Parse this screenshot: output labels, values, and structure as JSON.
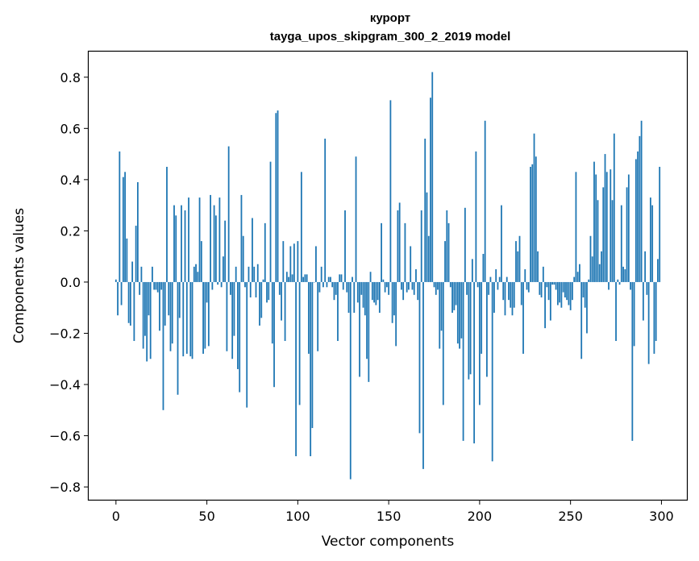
{
  "chart_data": {
    "type": "bar",
    "title_lines": [
      "курорт",
      "tayga_upos_skipgram_300_2_2019 model"
    ],
    "xlabel": "Vector components",
    "ylabel": "Components values",
    "xlim": [
      -15,
      314
    ],
    "ylim": [
      -0.85,
      0.9
    ],
    "xticks": [
      0,
      50,
      100,
      150,
      200,
      250,
      300
    ],
    "yticks": [
      -0.8,
      -0.6,
      -0.4,
      -0.2,
      0.0,
      0.2,
      0.4,
      0.6,
      0.8
    ],
    "ytick_labels": [
      "−0.8",
      "−0.6",
      "−0.4",
      "−0.2",
      "0.0",
      "0.2",
      "0.4",
      "0.6",
      "0.8"
    ],
    "grid": false,
    "bar_color": "#1f77b4",
    "values": [
      0.01,
      -0.13,
      0.51,
      -0.09,
      0.41,
      0.43,
      0.17,
      -0.16,
      -0.17,
      0.08,
      -0.23,
      0.22,
      0.39,
      -0.05,
      0.06,
      -0.26,
      -0.21,
      -0.31,
      -0.13,
      -0.3,
      0.06,
      -0.03,
      -0.03,
      -0.04,
      -0.19,
      -0.03,
      -0.5,
      -0.17,
      0.45,
      -0.13,
      -0.27,
      -0.24,
      0.3,
      0.26,
      -0.44,
      -0.14,
      0.3,
      -0.29,
      0.28,
      -0.28,
      0.33,
      -0.29,
      -0.3,
      0.06,
      0.07,
      0.04,
      0.33,
      0.16,
      -0.28,
      -0.26,
      -0.08,
      -0.25,
      0.34,
      -0.03,
      0.3,
      0.26,
      -0.01,
      0.33,
      -0.02,
      0.1,
      0.24,
      -0.27,
      0.53,
      -0.05,
      -0.3,
      -0.21,
      0.06,
      -0.34,
      -0.43,
      0.34,
      0.18,
      -0.02,
      -0.49,
      0.06,
      -0.06,
      0.25,
      0.06,
      -0.06,
      0.07,
      -0.17,
      -0.14,
      0.01,
      0.23,
      -0.08,
      -0.07,
      0.47,
      -0.24,
      -0.41,
      0.66,
      0.67,
      -0.05,
      -0.15,
      0.16,
      -0.23,
      0.04,
      0.02,
      0.14,
      0.03,
      0.15,
      -0.68,
      0.16,
      -0.48,
      0.43,
      0.02,
      0.03,
      0.03,
      -0.28,
      -0.68,
      -0.57,
      0.0,
      0.14,
      -0.27,
      -0.04,
      0.06,
      -0.02,
      0.56,
      -0.02,
      0.02,
      0.02,
      -0.02,
      -0.07,
      -0.05,
      -0.23,
      0.03,
      0.03,
      -0.03,
      0.28,
      -0.04,
      -0.12,
      -0.77,
      0.02,
      -0.12,
      0.49,
      -0.08,
      -0.37,
      -0.05,
      -0.1,
      -0.13,
      -0.3,
      -0.39,
      0.04,
      -0.07,
      -0.08,
      -0.09,
      -0.07,
      -0.12,
      0.23,
      0.01,
      -0.04,
      -0.02,
      -0.05,
      0.71,
      -0.16,
      -0.13,
      -0.25,
      0.28,
      0.31,
      -0.03,
      -0.07,
      0.23,
      -0.04,
      -0.03,
      0.14,
      -0.03,
      -0.05,
      0.05,
      -0.07,
      -0.59,
      0.28,
      -0.73,
      0.56,
      0.35,
      0.18,
      0.72,
      0.82,
      -0.02,
      -0.05,
      -0.03,
      -0.26,
      -0.19,
      -0.48,
      0.16,
      0.28,
      0.23,
      -0.02,
      -0.12,
      -0.11,
      -0.09,
      -0.24,
      -0.26,
      -0.22,
      -0.62,
      0.29,
      -0.05,
      -0.38,
      -0.36,
      0.09,
      -0.63,
      0.51,
      -0.02,
      -0.48,
      -0.28,
      0.11,
      0.63,
      -0.37,
      -0.05,
      0.02,
      -0.7,
      -0.12,
      0.05,
      -0.03,
      0.02,
      0.3,
      -0.07,
      -0.13,
      0.02,
      -0.07,
      -0.1,
      -0.13,
      -0.1,
      0.16,
      0.12,
      0.18,
      -0.09,
      -0.28,
      0.05,
      -0.03,
      -0.04,
      0.45,
      0.46,
      0.58,
      0.49,
      0.12,
      -0.05,
      -0.06,
      0.06,
      -0.18,
      -0.02,
      -0.07,
      -0.15,
      -0.01,
      -0.01,
      -0.03,
      -0.09,
      -0.08,
      -0.1,
      -0.04,
      -0.06,
      -0.07,
      -0.09,
      -0.11,
      -0.07,
      0.02,
      0.43,
      0.04,
      0.07,
      -0.3,
      -0.06,
      -0.1,
      -0.2,
      0.01,
      0.18,
      0.1,
      0.47,
      0.42,
      0.32,
      0.07,
      0.12,
      0.37,
      0.5,
      0.43,
      -0.03,
      0.44,
      0.32,
      0.58,
      -0.23,
      0.01,
      -0.01,
      0.3,
      0.06,
      0.05,
      0.37,
      0.42,
      -0.03,
      -0.62,
      -0.25,
      0.48,
      0.51,
      0.57,
      0.63,
      -0.15,
      0.12,
      -0.05,
      -0.32,
      0.33,
      0.3,
      -0.28,
      -0.23,
      0.09,
      0.45
    ]
  }
}
